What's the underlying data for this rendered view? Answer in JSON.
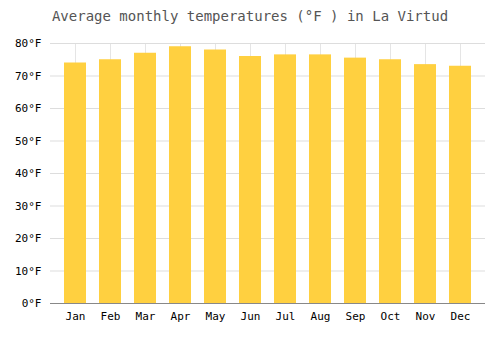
{
  "chart_data": {
    "type": "bar",
    "title": "Average monthly temperatures (°F ) in La Virtud",
    "categories": [
      "Jan",
      "Feb",
      "Mar",
      "Apr",
      "May",
      "Jun",
      "Jul",
      "Aug",
      "Sep",
      "Oct",
      "Nov",
      "Dec"
    ],
    "values": [
      74.0,
      75.0,
      77.0,
      79.0,
      78.0,
      76.0,
      76.5,
      76.5,
      75.5,
      75.0,
      73.5,
      73.0
    ],
    "color": "#FFD040",
    "ylim": [
      0,
      80
    ],
    "yticks": [
      {
        "value": 0,
        "label": "0°F"
      },
      {
        "value": 10,
        "label": "10°F"
      },
      {
        "value": 20,
        "label": "20°F"
      },
      {
        "value": 30,
        "label": "30°F"
      },
      {
        "value": 40,
        "label": "40°F"
      },
      {
        "value": 50,
        "label": "50°F"
      },
      {
        "value": 60,
        "label": "60°F"
      },
      {
        "value": 70,
        "label": "70°F"
      },
      {
        "value": 80,
        "label": "80°F"
      }
    ],
    "grid": true
  }
}
